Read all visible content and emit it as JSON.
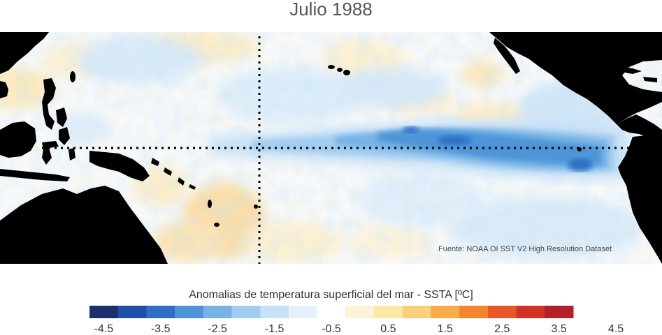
{
  "title": "Julio 1988",
  "source": "Fuente: NOAA OI SST V2 High Resolution Dataset",
  "colorbar": {
    "label": "Anomalias de temperatura superficial del mar - SSTA  [ºC]",
    "ticks": [
      "-4.5",
      "-3.5",
      "-2.5",
      "-1.5",
      "-0.5",
      "0.5",
      "1.5",
      "2.5",
      "3.5",
      "4.5"
    ],
    "colors": [
      "#1a2f6b",
      "#1f4fa6",
      "#2e6fc4",
      "#4e95d8",
      "#78b3e6",
      "#a3cdf0",
      "#c8e1f6",
      "#e4f1fb",
      "#ffffff",
      "#fdf3d6",
      "#fde6a6",
      "#fbd07a",
      "#f8ac4a",
      "#f3862c",
      "#e8572a",
      "#d33227",
      "#b4202a"
    ]
  },
  "map": {
    "land_color": "#000000",
    "equator_line": "dotted",
    "dateline_line": "dotted"
  }
}
